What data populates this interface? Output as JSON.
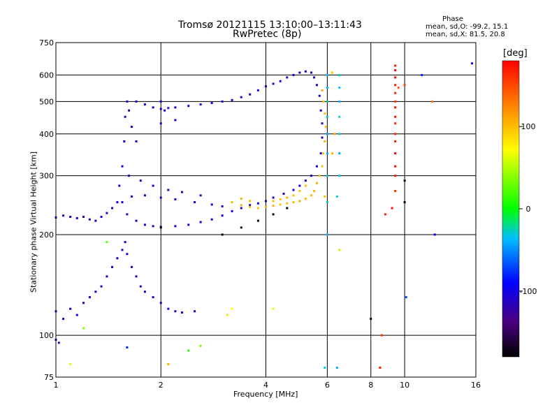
{
  "title": {
    "line1": "Tromsø 20121115 13:10:00–13:11:43",
    "line2": "RwPretec (8p)"
  },
  "stats": {
    "heading": "Phase",
    "line1": "mean, sd,O: -99.2, 15.1",
    "line2": "mean, sd,X:  81.5, 20.8"
  },
  "colorbar": {
    "unit": "[deg]",
    "ticks": [
      "100",
      "0",
      "-100"
    ],
    "tick_values": [
      100,
      0,
      -100
    ],
    "range": [
      -180,
      180
    ]
  },
  "chart_data": {
    "type": "scatter",
    "xlabel": "Frequency [MHz]",
    "ylabel": "Stationary phase Virtual Height [km]",
    "x_scale": "log",
    "y_scale": "log",
    "xlim": [
      1,
      16
    ],
    "ylim": [
      75,
      750
    ],
    "xticks": [
      1,
      2,
      4,
      6,
      8,
      10,
      16
    ],
    "xtick_labels": [
      "1",
      "2",
      "4",
      "6",
      "8",
      "10",
      "16"
    ],
    "yticks": [
      75,
      100,
      200,
      300,
      400,
      500,
      600,
      750
    ],
    "ytick_labels": [
      "75",
      "100",
      "200",
      "300",
      "400",
      "500",
      "600",
      "750"
    ],
    "grid": true,
    "color_by": "phase [deg]",
    "series": [
      {
        "points": [
          [
            1.0,
            225,
            -110
          ],
          [
            1.05,
            228,
            -112
          ],
          [
            1.1,
            226,
            -108
          ],
          [
            1.15,
            224,
            -105
          ],
          [
            1.2,
            226,
            -112
          ],
          [
            1.25,
            222,
            -110
          ],
          [
            1.3,
            220,
            -108
          ],
          [
            1.35,
            226,
            -105
          ],
          [
            1.4,
            232,
            -110
          ],
          [
            1.45,
            240,
            -110
          ],
          [
            1.5,
            250,
            -110
          ],
          [
            1.52,
            280,
            -105
          ],
          [
            1.55,
            320,
            -110
          ],
          [
            1.57,
            380,
            -108
          ],
          [
            1.58,
            450,
            -112
          ],
          [
            1.6,
            500,
            -110
          ],
          [
            1.62,
            470,
            -112
          ],
          [
            1.7,
            500,
            -110
          ],
          [
            1.8,
            490,
            -108
          ],
          [
            1.9,
            480,
            -110
          ],
          [
            2.0,
            475,
            -112
          ],
          [
            2.1,
            478,
            -108
          ],
          [
            2.2,
            480,
            -110
          ],
          [
            2.4,
            485,
            -112
          ],
          [
            2.6,
            490,
            -110
          ],
          [
            2.8,
            495,
            -108
          ],
          [
            3.0,
            500,
            -110
          ],
          [
            3.2,
            505,
            -112
          ],
          [
            3.4,
            515,
            -110
          ],
          [
            3.6,
            525,
            -108
          ],
          [
            3.8,
            540,
            -110
          ],
          [
            4.0,
            555,
            -112
          ],
          [
            4.2,
            565,
            -110
          ],
          [
            4.4,
            575,
            -108
          ],
          [
            4.6,
            590,
            -110
          ],
          [
            4.8,
            600,
            -112
          ],
          [
            5.0,
            610,
            -110
          ],
          [
            5.2,
            615,
            -108
          ],
          [
            5.4,
            610,
            -110
          ],
          [
            5.5,
            590,
            -112
          ],
          [
            5.6,
            560,
            -110
          ],
          [
            5.7,
            520,
            -108
          ],
          [
            5.75,
            470,
            -110
          ],
          [
            5.8,
            430,
            -112
          ],
          [
            5.8,
            390,
            -110
          ],
          [
            5.75,
            350,
            -108
          ],
          [
            5.6,
            320,
            -110
          ],
          [
            5.4,
            300,
            -112
          ],
          [
            5.2,
            290,
            -110
          ],
          [
            5.0,
            280,
            -108
          ],
          [
            4.8,
            272,
            -110
          ],
          [
            4.5,
            265,
            -112
          ],
          [
            4.2,
            258,
            -110
          ],
          [
            4.0,
            252,
            -108
          ],
          [
            3.8,
            248,
            -110
          ],
          [
            3.6,
            245,
            -112
          ],
          [
            3.4,
            240,
            -110
          ],
          [
            3.2,
            235,
            -108
          ],
          [
            3.0,
            228,
            -110
          ],
          [
            2.8,
            222,
            -112
          ],
          [
            2.6,
            218,
            -110
          ],
          [
            2.4,
            214,
            -108
          ],
          [
            2.2,
            212,
            -110
          ],
          [
            2.0,
            211,
            -112
          ],
          [
            1.9,
            212,
            -110
          ],
          [
            1.8,
            214,
            -108
          ],
          [
            1.7,
            220,
            -110
          ],
          [
            1.6,
            230,
            -112
          ],
          [
            1.55,
            250,
            -110
          ],
          [
            1.65,
            260,
            -108
          ],
          [
            1.8,
            262,
            -110
          ],
          [
            2.0,
            258,
            -112
          ],
          [
            2.2,
            255,
            -110
          ],
          [
            2.5,
            250,
            -108
          ],
          [
            2.8,
            246,
            -110
          ],
          [
            3.0,
            243,
            -112
          ],
          [
            1.62,
            300,
            -110
          ],
          [
            1.75,
            290,
            -108
          ],
          [
            1.9,
            280,
            -110
          ],
          [
            2.1,
            272,
            -112
          ],
          [
            2.3,
            268,
            -110
          ],
          [
            2.6,
            262,
            -108
          ],
          [
            1.7,
            380,
            -110
          ],
          [
            1.65,
            420,
            -112
          ],
          [
            2.0,
            430,
            -110
          ],
          [
            2.2,
            440,
            -108
          ],
          [
            2.0,
            500,
            -110
          ],
          [
            2.05,
            470,
            -112
          ],
          [
            1.0,
            118,
            -110
          ],
          [
            1.05,
            112,
            -108
          ],
          [
            1.1,
            120,
            -110
          ],
          [
            1.15,
            115,
            -112
          ],
          [
            1.2,
            125,
            -110
          ],
          [
            1.25,
            130,
            -108
          ],
          [
            1.3,
            135,
            -110
          ],
          [
            1.35,
            140,
            -112
          ],
          [
            1.4,
            150,
            -110
          ],
          [
            1.45,
            160,
            -108
          ],
          [
            1.5,
            170,
            -110
          ],
          [
            1.55,
            180,
            -112
          ],
          [
            1.58,
            190,
            -110
          ],
          [
            1.6,
            175,
            -108
          ],
          [
            1.65,
            160,
            -110
          ],
          [
            1.7,
            150,
            -112
          ],
          [
            1.75,
            140,
            -110
          ],
          [
            1.8,
            135,
            -108
          ],
          [
            1.9,
            130,
            -110
          ],
          [
            2.0,
            125,
            -112
          ],
          [
            2.1,
            120,
            -110
          ],
          [
            2.2,
            118,
            -108
          ],
          [
            2.3,
            117,
            -110
          ],
          [
            2.5,
            118,
            -112
          ],
          [
            1.02,
            95,
            -110
          ],
          [
            1.0,
            97,
            -108
          ]
        ]
      },
      {
        "points": [
          [
            3.2,
            250,
            100
          ],
          [
            3.4,
            245,
            105
          ],
          [
            3.6,
            242,
            100
          ],
          [
            3.8,
            240,
            98
          ],
          [
            4.0,
            242,
            100
          ],
          [
            4.2,
            244,
            105
          ],
          [
            4.4,
            246,
            100
          ],
          [
            4.6,
            248,
            98
          ],
          [
            4.8,
            250,
            100
          ],
          [
            5.0,
            252,
            105
          ],
          [
            5.2,
            256,
            100
          ],
          [
            5.4,
            262,
            98
          ],
          [
            5.5,
            270,
            100
          ],
          [
            5.6,
            285,
            105
          ],
          [
            5.7,
            300,
            100
          ],
          [
            5.8,
            320,
            98
          ],
          [
            5.85,
            350,
            100
          ],
          [
            5.9,
            380,
            105
          ],
          [
            5.95,
            420,
            100
          ],
          [
            5.9,
            460,
            98
          ],
          [
            5.85,
            500,
            100
          ],
          [
            5.8,
            540,
            105
          ],
          [
            5.2,
            280,
            100
          ],
          [
            5.0,
            270,
            98
          ],
          [
            4.8,
            262,
            100
          ],
          [
            4.6,
            258,
            105
          ],
          [
            4.4,
            255,
            100
          ],
          [
            4.2,
            252,
            98
          ],
          [
            3.6,
            252,
            100
          ],
          [
            3.4,
            256,
            105
          ],
          [
            5.9,
            260,
            100
          ],
          [
            6.0,
            300,
            98
          ],
          [
            6.2,
            350,
            100
          ],
          [
            6.3,
            400,
            105
          ]
        ]
      },
      {
        "points": [
          [
            9.4,
            620,
            180
          ],
          [
            9.4,
            560,
            170
          ],
          [
            9.4,
            500,
            160
          ],
          [
            9.4,
            450,
            175
          ],
          [
            9.4,
            400,
            165
          ],
          [
            9.4,
            350,
            180
          ],
          [
            9.4,
            300,
            170
          ],
          [
            9.4,
            270,
            160
          ],
          [
            9.2,
            240,
            175
          ],
          [
            8.8,
            230,
            165
          ],
          [
            9.4,
            320,
            180
          ],
          [
            9.4,
            380,
            170
          ],
          [
            9.4,
            430,
            160
          ],
          [
            9.4,
            480,
            175
          ],
          [
            9.4,
            530,
            165
          ],
          [
            9.4,
            590,
            180
          ],
          [
            9.4,
            640,
            170
          ],
          [
            8.6,
            100,
            160
          ],
          [
            8.5,
            80,
            175
          ],
          [
            10.0,
            560,
            150
          ],
          [
            12.0,
            500,
            130
          ],
          [
            9.6,
            550,
            140
          ]
        ]
      },
      {
        "points": [
          [
            6.0,
            600,
            -40
          ],
          [
            6.0,
            500,
            -30
          ],
          [
            6.0,
            400,
            -45
          ],
          [
            6.0,
            300,
            -35
          ],
          [
            6.0,
            200,
            -40
          ],
          [
            6.5,
            600,
            -30
          ],
          [
            6.5,
            500,
            -45
          ],
          [
            6.5,
            400,
            -35
          ],
          [
            6.5,
            300,
            -40
          ],
          [
            6.4,
            260,
            -30
          ],
          [
            6.4,
            80,
            -45
          ],
          [
            5.9,
            80,
            -35
          ],
          [
            6.0,
            550,
            -40
          ],
          [
            6.0,
            450,
            -30
          ],
          [
            6.0,
            350,
            -45
          ],
          [
            6.0,
            250,
            -35
          ],
          [
            6.5,
            550,
            -40
          ],
          [
            6.5,
            450,
            -30
          ],
          [
            6.5,
            350,
            -45
          ]
        ]
      },
      {
        "points": [
          [
            3.0,
            200,
            -190
          ],
          [
            3.4,
            210,
            -195
          ],
          [
            3.8,
            220,
            -185
          ],
          [
            4.2,
            230,
            -190
          ],
          [
            4.6,
            240,
            -195
          ],
          [
            2.0,
            210,
            -185
          ],
          [
            8.0,
            112,
            -190
          ],
          [
            10.0,
            290,
            -195
          ],
          [
            10.0,
            250,
            -185
          ]
        ]
      },
      {
        "points": [
          [
            3.2,
            120,
            70
          ],
          [
            3.1,
            115,
            80
          ],
          [
            4.2,
            120,
            60
          ],
          [
            6.5,
            180,
            50
          ],
          [
            11.2,
            600,
            -80
          ],
          [
            10.1,
            130,
            -70
          ],
          [
            12.2,
            200,
            -90
          ],
          [
            15.6,
            650,
            -100
          ],
          [
            1.2,
            105,
            40
          ],
          [
            1.4,
            190,
            20
          ],
          [
            1.6,
            92,
            -80
          ],
          [
            2.4,
            90,
            10
          ],
          [
            2.6,
            93,
            30
          ],
          [
            2.1,
            82,
            110
          ],
          [
            1.1,
            82,
            60
          ],
          [
            6.2,
            610,
            90
          ]
        ]
      }
    ]
  }
}
